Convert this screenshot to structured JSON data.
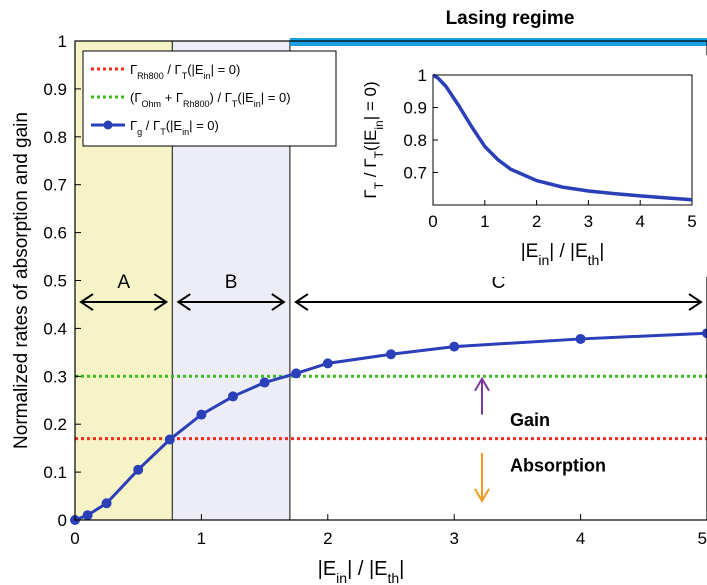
{
  "chart_data": {
    "type": "line",
    "title": "",
    "xlabel": "|E_in| / |E_th|",
    "ylabel": "Normalized rates of absorption and gain",
    "xlim": [
      0,
      5
    ],
    "ylim": [
      0,
      1
    ],
    "x_ticks": [
      "0",
      "1",
      "2",
      "3",
      "4",
      "5"
    ],
    "y_ticks": [
      "0",
      "0.1",
      "0.2",
      "0.3",
      "0.4",
      "0.5",
      "0.6",
      "0.7",
      "0.8",
      "0.9",
      "1"
    ],
    "grid": false,
    "legend_position": "top-left",
    "regions": [
      {
        "label": "A",
        "x_start": 0,
        "x_end": 0.77,
        "color": "#f6f4c6"
      },
      {
        "label": "B",
        "x_start": 0.77,
        "x_end": 1.7,
        "color": "#ecedf6"
      },
      {
        "label": "C",
        "x_start": 1.7,
        "x_end": 5,
        "color": "#ffffff"
      }
    ],
    "lasing_regime": {
      "label": "Lasing regime",
      "x_start": 1.7,
      "x_end": 5,
      "color": "#1ba1e2"
    },
    "series": [
      {
        "name": "Γ_Rh800 / Γ_T(|E_in| = 0)",
        "style": "dotted",
        "color": "#ff2a1a",
        "x": [
          0,
          5
        ],
        "y": [
          0.17,
          0.17
        ]
      },
      {
        "name": "(Γ_Ohm + Γ_Rh800) / Γ_T(|E_in| = 0)",
        "style": "dotted",
        "color": "#3dbb1f",
        "x": [
          0,
          5
        ],
        "y": [
          0.3,
          0.3
        ]
      },
      {
        "name": "Γ_g / Γ_T(|E_in| = 0)",
        "style": "line-marker",
        "color": "#2b3fb8",
        "x": [
          0,
          0.1,
          0.25,
          0.5,
          0.75,
          1.0,
          1.25,
          1.5,
          1.75,
          2.0,
          2.5,
          3.0,
          4.0,
          5.0
        ],
        "y": [
          0,
          0.01,
          0.035,
          0.105,
          0.168,
          0.22,
          0.258,
          0.287,
          0.306,
          0.327,
          0.346,
          0.362,
          0.378,
          0.39
        ]
      }
    ],
    "annotations": {
      "gain": {
        "text": "Gain",
        "color": "#7a3a9a"
      },
      "absorption": {
        "text": "Absorption",
        "color": "#f29a1e"
      }
    },
    "inset": {
      "type": "line",
      "xlabel": "|E_in| / |E_th|",
      "ylabel": "Γ_T / Γ_T(|E_in| = 0)",
      "xlim": [
        0,
        5
      ],
      "ylim": [
        0.6,
        1.0
      ],
      "x_ticks": [
        "0",
        "1",
        "2",
        "3",
        "4",
        "5"
      ],
      "y_ticks": [
        "0.7",
        "0.8",
        "0.9",
        "1"
      ],
      "series": [
        {
          "color": "#2b3fb8",
          "x": [
            0,
            0.1,
            0.25,
            0.5,
            0.75,
            1.0,
            1.25,
            1.5,
            2.0,
            2.5,
            3.0,
            3.5,
            4.0,
            4.5,
            5.0
          ],
          "y": [
            1.0,
            0.99,
            0.965,
            0.905,
            0.84,
            0.78,
            0.74,
            0.71,
            0.675,
            0.655,
            0.643,
            0.635,
            0.628,
            0.622,
            0.616
          ]
        }
      ]
    }
  }
}
